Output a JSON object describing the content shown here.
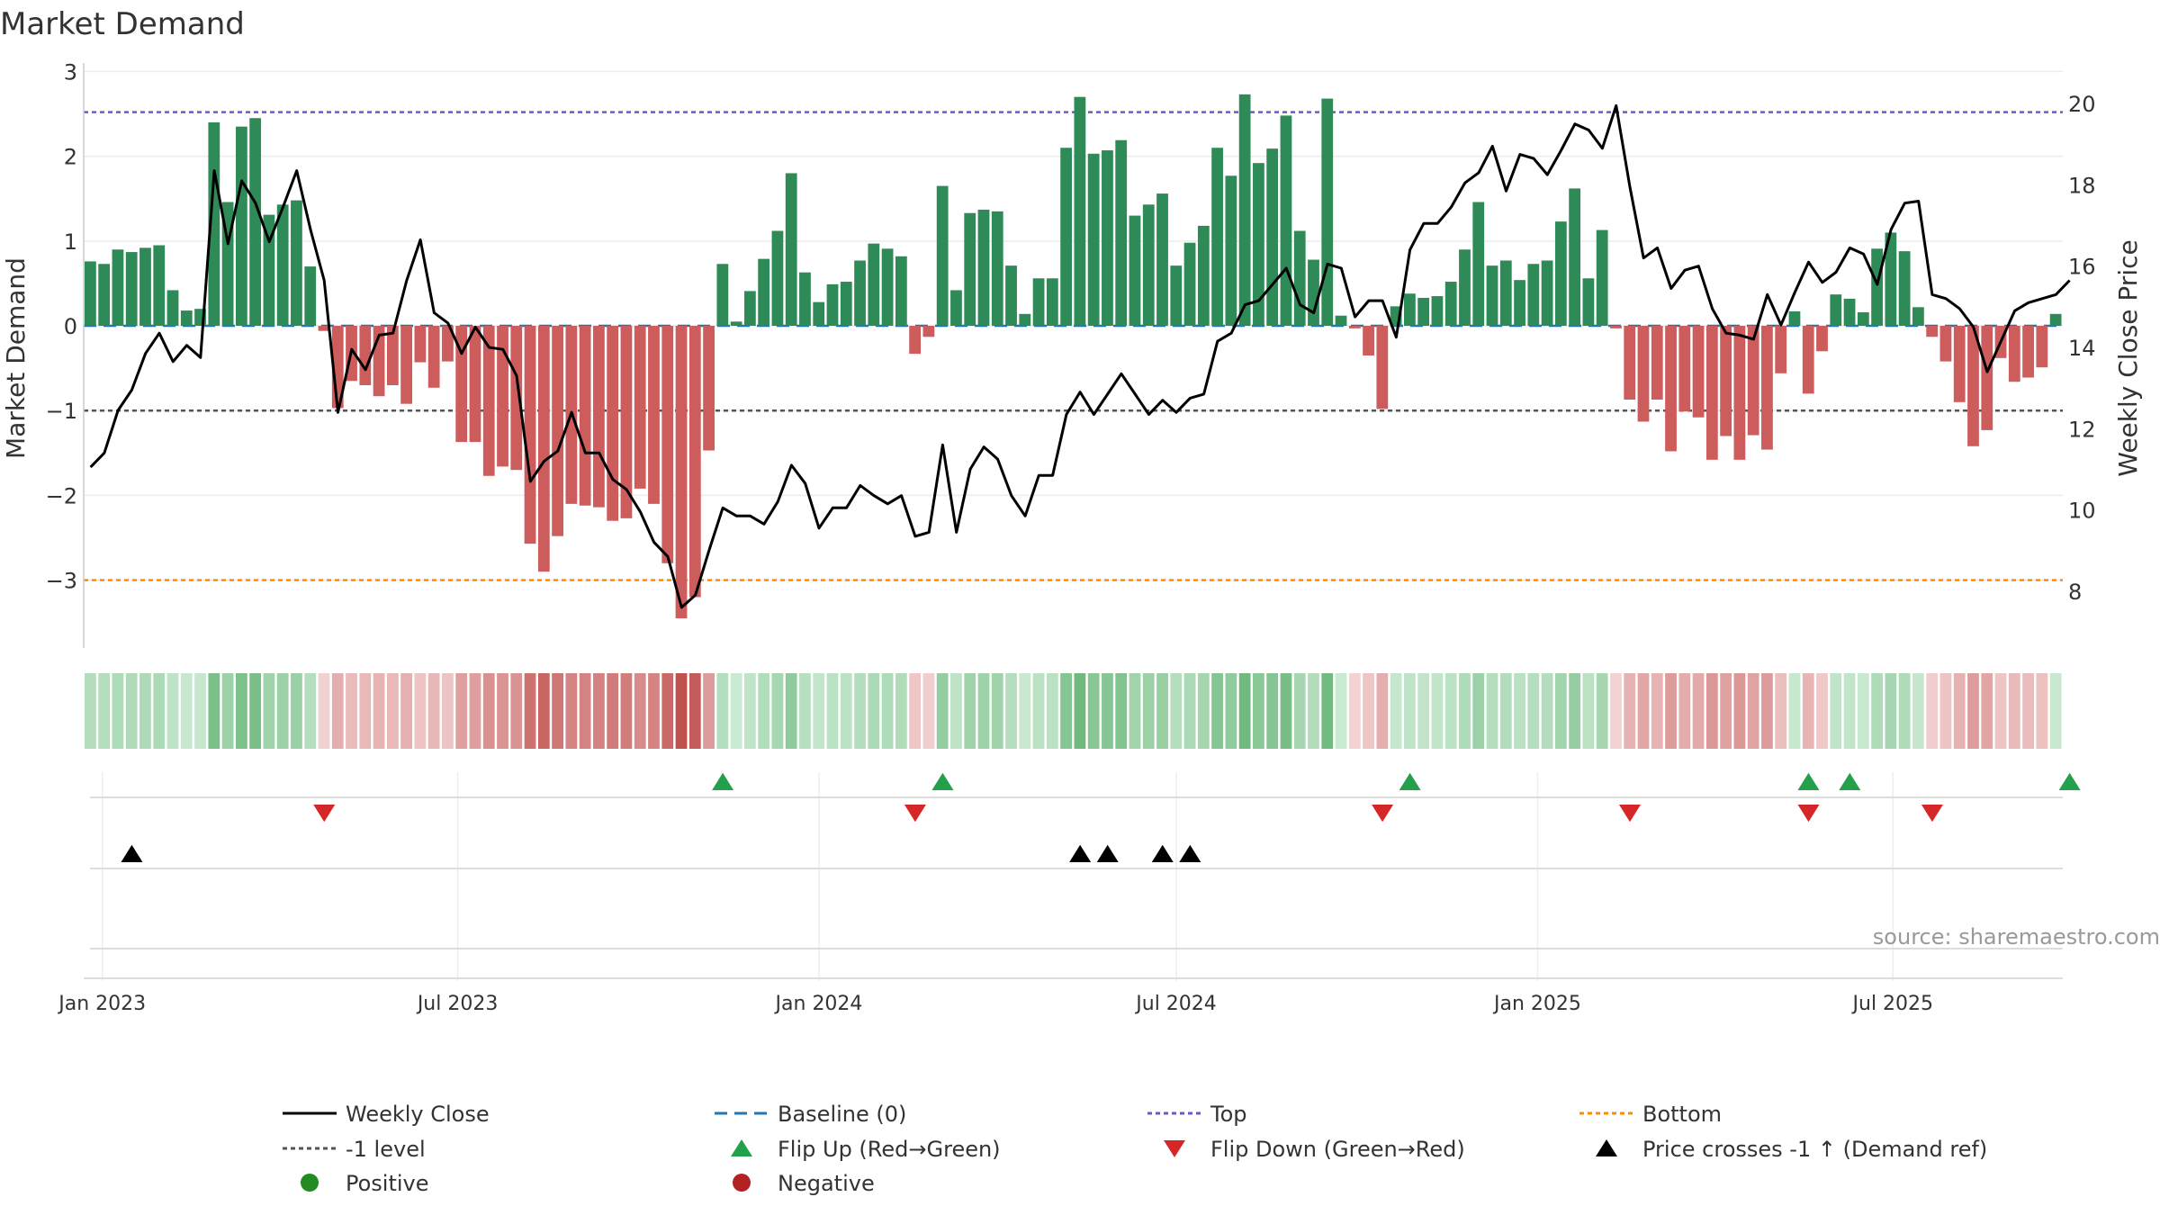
{
  "chart_data": {
    "type": "bar",
    "title": "Market Demand",
    "ylabel": "Market Demand",
    "y2label": "Weekly Close Price",
    "ylim": [
      -3.8,
      3.1
    ],
    "y2lim": [
      6.6,
      21.0
    ],
    "yticks": [
      3,
      2,
      1,
      0,
      -1,
      -2,
      -3
    ],
    "yticklabels": [
      "3",
      "2",
      "1",
      "0",
      "−1",
      "−2",
      "−3"
    ],
    "y2ticks": [
      20,
      18,
      16,
      14,
      12,
      10,
      8
    ],
    "y2ticklabels": [
      "20",
      "18",
      "16",
      "14",
      "12",
      "10",
      "8"
    ],
    "week_start": "2022-12-26",
    "xticks": [
      {
        "date": "2023-01-01",
        "label": "Jan 2023"
      },
      {
        "date": "2023-07-01",
        "label": "Jul 2023"
      },
      {
        "date": "2024-01-01",
        "label": "Jan 2024"
      },
      {
        "date": "2024-07-01",
        "label": "Jul 2024"
      },
      {
        "date": "2025-01-01",
        "label": "Jan 2025"
      },
      {
        "date": "2025-07-01",
        "label": "Jul 2025"
      }
    ],
    "reference_lines": {
      "baseline": 0,
      "top": 2.52,
      "minus_one": -1,
      "bottom": -3
    },
    "demand": [
      0.76,
      0.73,
      0.9,
      0.87,
      0.92,
      0.95,
      0.42,
      0.18,
      0.2,
      2.4,
      1.46,
      2.35,
      2.45,
      1.31,
      1.43,
      1.48,
      0.7,
      -0.06,
      -0.97,
      -0.65,
      -0.7,
      -0.83,
      -0.7,
      -0.92,
      -0.43,
      -0.73,
      -0.42,
      -1.37,
      -1.37,
      -1.77,
      -1.66,
      -1.7,
      -2.57,
      -2.9,
      -2.48,
      -2.1,
      -2.12,
      -2.14,
      -2.3,
      -2.27,
      -1.92,
      -2.1,
      -2.8,
      -3.45,
      -3.2,
      -1.47,
      0.73,
      0.05,
      0.41,
      0.79,
      1.12,
      1.8,
      0.63,
      0.28,
      0.49,
      0.52,
      0.77,
      0.97,
      0.91,
      0.82,
      -0.33,
      -0.13,
      1.65,
      0.42,
      1.33,
      1.37,
      1.35,
      0.71,
      0.14,
      0.56,
      0.56,
      2.1,
      2.7,
      2.03,
      2.07,
      2.19,
      1.3,
      1.43,
      1.56,
      0.71,
      0.98,
      1.18,
      2.1,
      1.77,
      2.73,
      1.92,
      2.09,
      2.48,
      1.12,
      0.78,
      2.68,
      0.12,
      -0.03,
      -0.35,
      -0.98,
      0.23,
      0.38,
      0.33,
      0.35,
      0.52,
      0.9,
      1.46,
      0.71,
      0.77,
      0.54,
      0.73,
      0.77,
      1.23,
      1.62,
      0.56,
      1.13,
      -0.03,
      -0.87,
      -1.13,
      -0.87,
      -1.48,
      -1.01,
      -1.08,
      -1.58,
      -1.3,
      -1.58,
      -1.29,
      -1.46,
      -0.56,
      0.17,
      -0.8,
      -0.3,
      0.37,
      0.32,
      0.16,
      0.91,
      1.1,
      0.88,
      0.22,
      -0.13,
      -0.42,
      -0.9,
      -1.42,
      -1.23,
      -0.38,
      -0.66,
      -0.61,
      -0.49,
      0.14
    ],
    "weekly_close": [
      11.05,
      11.4,
      12.45,
      12.95,
      13.85,
      14.35,
      13.65,
      14.05,
      13.75,
      18.35,
      16.55,
      18.1,
      17.55,
      16.6,
      17.45,
      18.35,
      16.9,
      15.65,
      12.4,
      13.95,
      13.45,
      14.3,
      14.35,
      15.65,
      16.65,
      14.85,
      14.6,
      13.85,
      14.5,
      14.0,
      13.95,
      13.3,
      10.7,
      11.2,
      11.45,
      12.4,
      11.4,
      11.4,
      10.75,
      10.5,
      9.95,
      9.2,
      8.85,
      7.6,
      7.9,
      9.0,
      10.05,
      9.85,
      9.85,
      9.65,
      10.2,
      11.1,
      10.65,
      9.55,
      10.05,
      10.05,
      10.6,
      10.35,
      10.15,
      10.35,
      9.35,
      9.45,
      11.6,
      9.45,
      11.0,
      11.55,
      11.25,
      10.35,
      9.85,
      10.85,
      10.85,
      12.35,
      12.9,
      12.35,
      12.85,
      13.35,
      12.85,
      12.35,
      12.7,
      12.4,
      12.75,
      12.85,
      14.15,
      14.35,
      15.05,
      15.15,
      15.55,
      15.95,
      15.05,
      14.85,
      16.05,
      15.95,
      14.75,
      15.15,
      15.15,
      14.25,
      16.4,
      17.05,
      17.05,
      17.45,
      18.05,
      18.3,
      18.95,
      17.85,
      18.75,
      18.65,
      18.25,
      18.85,
      19.5,
      19.35,
      18.9,
      19.95,
      17.95,
      16.2,
      16.45,
      15.45,
      15.9,
      16.0,
      14.95,
      14.35,
      14.3,
      14.2,
      15.3,
      14.55,
      15.35,
      16.1,
      15.6,
      15.85,
      16.45,
      16.3,
      15.55,
      16.9,
      17.55,
      17.6,
      15.3,
      15.2,
      14.95,
      14.5,
      13.4,
      14.15,
      14.9,
      15.1,
      15.2,
      15.3,
      15.65
    ],
    "flip_up_weeks": [
      46,
      62,
      96,
      125,
      128,
      144
    ],
    "flip_down_weeks": [
      17,
      60,
      94,
      112,
      125,
      134
    ],
    "price_cross_weeks": [
      3,
      72,
      74,
      78,
      80
    ],
    "source": "source: sharemaestro.com",
    "legend": [
      {
        "label": "Weekly Close",
        "kind": "line-solid",
        "color": "#000000"
      },
      {
        "label": "Baseline (0)",
        "kind": "line-dash",
        "color": "#1f77b4"
      },
      {
        "label": "Top",
        "kind": "line-dot",
        "color": "#6a5acd"
      },
      {
        "label": "Bottom",
        "kind": "line-dot",
        "color": "#ff8c00"
      },
      {
        "label": "-1 level",
        "kind": "line-dot",
        "color": "#555555"
      },
      {
        "label": "Flip Up (Red→Green)",
        "kind": "tri-up",
        "color": "#22a04b"
      },
      {
        "label": "Flip Down (Green→Red)",
        "kind": "tri-down",
        "color": "#d62728"
      },
      {
        "label": "Price crosses -1 ↑ (Demand ref)",
        "kind": "tri-up",
        "color": "#000000"
      },
      {
        "label": "Positive",
        "kind": "dot",
        "color": "#228b22"
      },
      {
        "label": "Negative",
        "kind": "dot",
        "color": "#b22222"
      }
    ],
    "colors": {
      "positive": "#2e8b57",
      "negative": "#cd5c5c",
      "top": "#6a5acd",
      "bottom": "#ff8c00",
      "baseline": "#1f77b4",
      "minus_one": "#555555",
      "flip_up": "#22a04b",
      "flip_down": "#d62728"
    }
  }
}
